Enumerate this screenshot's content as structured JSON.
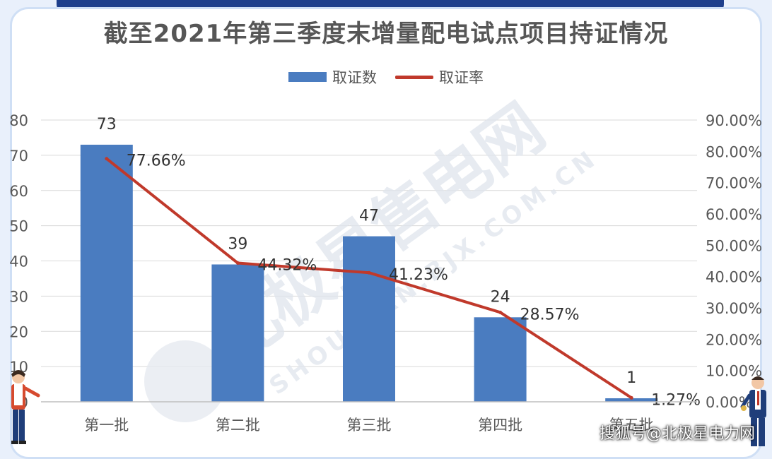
{
  "title": "截至2021年第三季度末增量配电试点项目持证情况",
  "source_note": "搜狐号@北极星电力网",
  "watermark": {
    "main": "北极星售电网",
    "sub": "SHOUDIAN.BJX.COM.CN"
  },
  "colors": {
    "bar": "#4a7cc0",
    "line": "#c0392b",
    "frame": "#cfdff5",
    "top_bar": "#1e3f8c"
  },
  "chart_data": {
    "type": "bar",
    "categories": [
      "第一批",
      "第二批",
      "第三批",
      "第四批",
      "第五批"
    ],
    "series": [
      {
        "name": "取证数",
        "type": "bar",
        "axis": "left",
        "values": [
          73,
          39,
          47,
          24,
          1
        ],
        "labels": [
          "73",
          "39",
          "47",
          "24",
          "1"
        ]
      },
      {
        "name": "取证率",
        "type": "line",
        "axis": "right",
        "values": [
          77.66,
          44.32,
          41.23,
          28.57,
          1.27
        ],
        "labels": [
          "77.66%",
          "44.32%",
          "41.23%",
          "28.57%",
          "1.27%"
        ]
      }
    ],
    "y_left": {
      "min": 0,
      "max": 80,
      "ticks": [
        "0",
        "10",
        "20",
        "30",
        "40",
        "50",
        "60",
        "70",
        "80"
      ]
    },
    "y_right": {
      "min": 0,
      "max": 90,
      "ticks": [
        "0.00%",
        "10.00%",
        "20.00%",
        "30.00%",
        "40.00%",
        "50.00%",
        "60.00%",
        "70.00%",
        "80.00%",
        "90.00%"
      ]
    },
    "grid": true,
    "legend_position": "top-center"
  }
}
